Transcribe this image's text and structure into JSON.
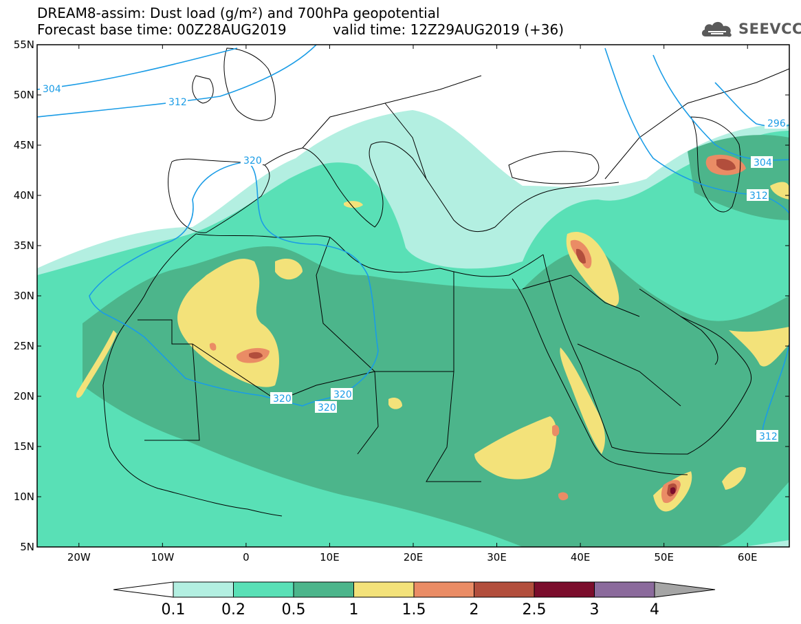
{
  "title": {
    "line1": "DREAM8-assim: Dust load (g/m²) and 700hPa geopotential",
    "line2": "Forecast base time: 00Z28AUG2019",
    "valid": "valid time: 12Z29AUG2019 (+36)"
  },
  "logo": {
    "text": "SEEVCCC",
    "icon": "cloud-icon"
  },
  "axes": {
    "lat_labels": [
      "55N",
      "50N",
      "45N",
      "40N",
      "35N",
      "30N",
      "25N",
      "20N",
      "15N",
      "10N",
      "5N"
    ],
    "lon_labels": [
      "20W",
      "10W",
      "0",
      "10E",
      "20E",
      "30E",
      "40E",
      "50E",
      "60E"
    ],
    "lat_range": [
      5,
      55
    ],
    "lon_range": [
      -25,
      65
    ]
  },
  "contours": [
    {
      "label": "304"
    },
    {
      "label": "312"
    },
    {
      "label": "320"
    },
    {
      "label": "320"
    },
    {
      "label": "320"
    },
    {
      "label": "320"
    },
    {
      "label": "296"
    },
    {
      "label": "304"
    },
    {
      "label": "312"
    },
    {
      "label": "312"
    }
  ],
  "colorbar": {
    "labels": [
      "0.1",
      "0.2",
      "0.5",
      "1",
      "1.5",
      "2",
      "2.5",
      "3",
      "4"
    ],
    "colors": [
      "#b3efe1",
      "#59e0b6",
      "#4cb58b",
      "#f3e27a",
      "#ea8c65",
      "#b24e3c",
      "#7b0d2c",
      "#8b6a9c"
    ],
    "low_color": "#ffffff",
    "high_color": "#a5a5a5"
  },
  "colors": {
    "contour": "#1a9ce6",
    "coast": "#000000",
    "dust_01": "#b3efe1",
    "dust_02": "#59e0b6",
    "dust_05": "#4cb58b",
    "dust_1": "#f3e27a",
    "dust_15": "#ea8c65",
    "dust_2": "#b24e3c",
    "dust_25": "#7b0d2c"
  }
}
